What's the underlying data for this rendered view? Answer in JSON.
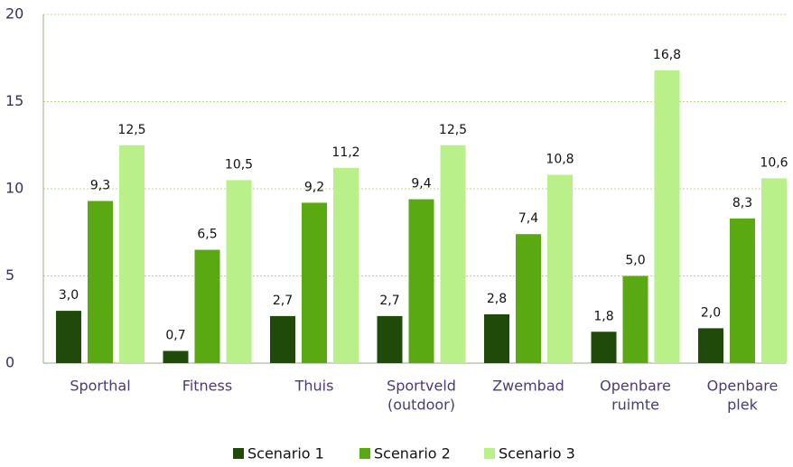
{
  "chart_data": {
    "type": "bar",
    "categories": [
      [
        "Sporthal"
      ],
      [
        "Fitness"
      ],
      [
        "Thuis"
      ],
      [
        "Sportveld",
        "(outdoor)"
      ],
      [
        "Zwembad"
      ],
      [
        "Openbare",
        "ruimte"
      ],
      [
        "Openbare",
        "plek"
      ]
    ],
    "series": [
      {
        "name": "Scenario 1",
        "color": "#1f4a0a",
        "values": [
          3.0,
          0.7,
          2.7,
          2.7,
          2.8,
          1.8,
          2.0
        ],
        "value_labels": [
          "3,0",
          "0,7",
          "2,7",
          "2,7",
          "2,8",
          "1,8",
          "2,0"
        ]
      },
      {
        "name": "Scenario 2",
        "color": "#5aa812",
        "values": [
          9.3,
          6.5,
          9.2,
          9.4,
          7.4,
          5.0,
          8.3
        ],
        "value_labels": [
          "9,3",
          "6,5",
          "9,2",
          "9,4",
          "7,4",
          "5,0",
          "8,3"
        ]
      },
      {
        "name": "Scenario 3",
        "color": "#b9f08a",
        "values": [
          12.5,
          10.5,
          11.2,
          12.5,
          10.8,
          16.8,
          10.6
        ],
        "value_labels": [
          "12,5",
          "10,5",
          "11,2",
          "12,5",
          "10,8",
          "16,8",
          "10,6"
        ]
      }
    ],
    "ylim": [
      0,
      20
    ],
    "yticks": [
      0,
      5,
      10,
      15,
      20
    ],
    "grid": true,
    "legend": "bottom"
  }
}
